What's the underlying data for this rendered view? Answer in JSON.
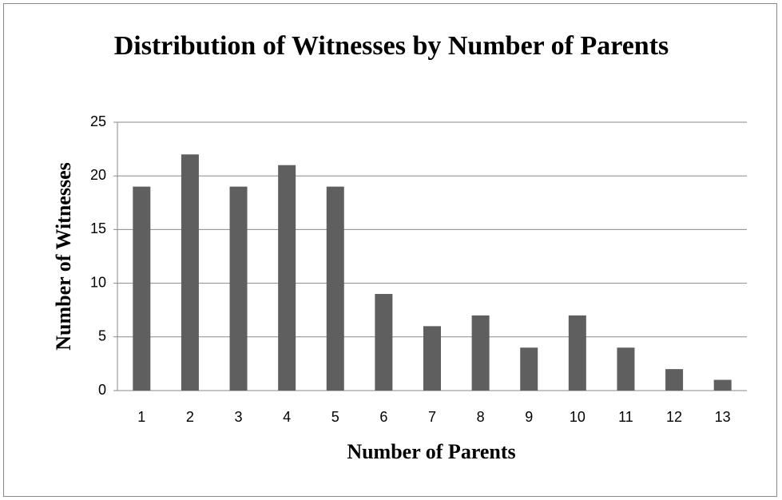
{
  "chart_data": {
    "type": "bar",
    "title": "Distribution of Witnesses by Number of Parents",
    "x_label": "Number of Parents",
    "y_label": "Number of Witnesses",
    "categories": [
      "1",
      "2",
      "3",
      "4",
      "5",
      "6",
      "7",
      "8",
      "9",
      "10",
      "11",
      "12",
      "13"
    ],
    "values": [
      19,
      22,
      19,
      21,
      19,
      9,
      6,
      7,
      4,
      7,
      4,
      2,
      1
    ],
    "color": "#5f5f5f",
    "ylim": [
      0,
      25
    ],
    "yticks": [
      0,
      5,
      10,
      15,
      20,
      25
    ],
    "grid": true
  }
}
